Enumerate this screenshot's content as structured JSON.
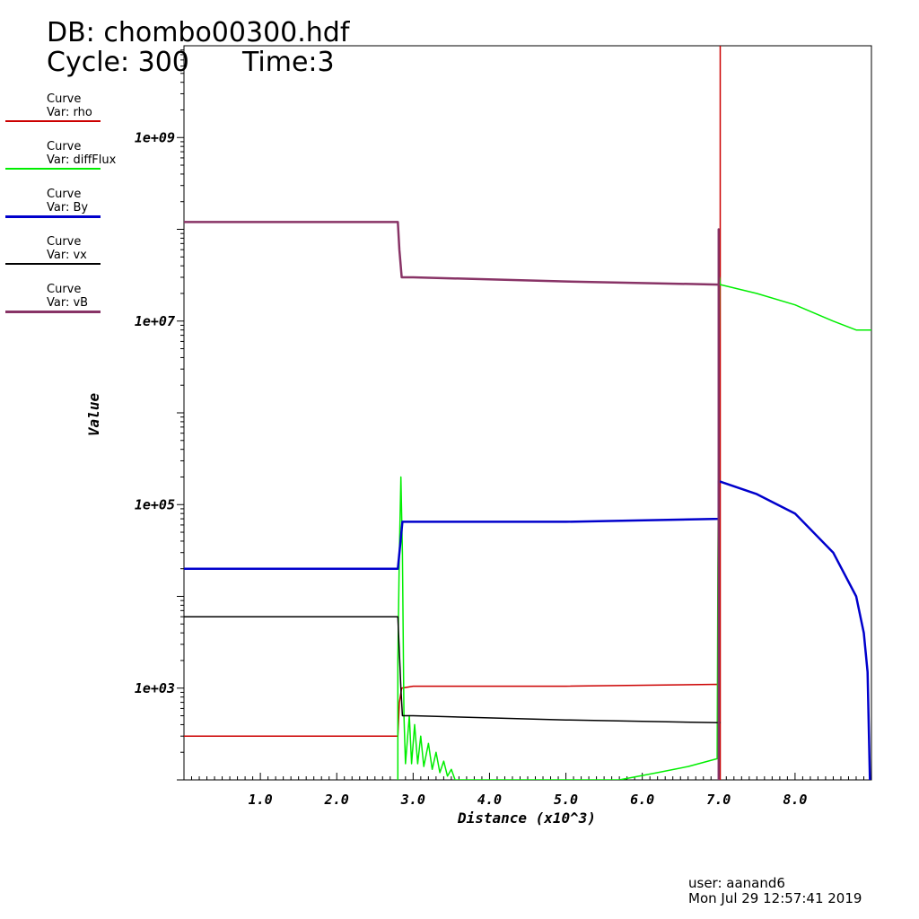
{
  "header": {
    "db": "DB: chombo00300.hdf",
    "cycle": "Cycle: 300",
    "time": "Time:3"
  },
  "footer": {
    "user": "user: aanand6",
    "date": "Mon Jul 29 12:57:41 2019"
  },
  "legend": [
    {
      "kind": "Curve",
      "var": "Var: rho",
      "color": "#cc0000"
    },
    {
      "kind": "Curve",
      "var": "Var: diffFlux",
      "color": "#00ee00"
    },
    {
      "kind": "Curve",
      "var": "Var: By",
      "color": "#0000cc"
    },
    {
      "kind": "Curve",
      "var": "Var: vx",
      "color": "#000000"
    },
    {
      "kind": "Curve",
      "var": "Var: vB",
      "color": "#883366"
    }
  ],
  "chart_data": {
    "type": "line",
    "xlabel": "Distance (x10^3)",
    "ylabel": "Value",
    "y_scale": "log",
    "xlim": [
      0,
      9.0
    ],
    "ylim": [
      100,
      10000000000
    ],
    "x_ticks": [
      "1.0",
      "2.0",
      "3.0",
      "4.0",
      "5.0",
      "6.0",
      "7.0",
      "8.0"
    ],
    "y_ticks": [
      {
        "label": "1e+03",
        "value": 1000
      },
      {
        "label": "1e+05",
        "value": 100000
      },
      {
        "label": "1e+07",
        "value": 10000000
      },
      {
        "label": "1e+09",
        "value": 1000000000
      }
    ],
    "series": [
      {
        "name": "rho",
        "color": "#cc0000",
        "width": 1.5,
        "points": [
          [
            0,
            300
          ],
          [
            2.8,
            300
          ],
          [
            2.82,
            700
          ],
          [
            2.85,
            1000
          ],
          [
            3.0,
            1050
          ],
          [
            5.0,
            1050
          ],
          [
            7.0,
            1100
          ],
          [
            7.02,
            100
          ],
          [
            7.02,
            10000000000
          ]
        ]
      },
      {
        "name": "diffFlux",
        "color": "#00ee00",
        "width": 1.5,
        "points": [
          [
            2.8,
            100
          ],
          [
            2.8,
            2000
          ],
          [
            2.82,
            30000
          ],
          [
            2.84,
            200000
          ],
          [
            2.86,
            30000
          ],
          [
            2.88,
            500
          ],
          [
            2.9,
            150
          ],
          [
            2.95,
            500
          ],
          [
            2.98,
            150
          ],
          [
            3.02,
            400
          ],
          [
            3.06,
            150
          ],
          [
            3.1,
            300
          ],
          [
            3.14,
            140
          ],
          [
            3.2,
            250
          ],
          [
            3.25,
            130
          ],
          [
            3.3,
            200
          ],
          [
            3.35,
            120
          ],
          [
            3.4,
            160
          ],
          [
            3.45,
            110
          ],
          [
            3.5,
            130
          ],
          [
            3.55,
            100
          ],
          [
            5.7,
            100
          ],
          [
            6.2,
            120
          ],
          [
            6.6,
            140
          ],
          [
            6.98,
            170
          ],
          [
            6.99,
            20000
          ],
          [
            7.0,
            500000
          ],
          [
            7.01,
            30000000
          ],
          [
            7.02,
            25000000
          ],
          [
            7.5,
            20000000
          ],
          [
            8.0,
            15000000
          ],
          [
            8.5,
            10000000
          ],
          [
            8.8,
            8000000
          ],
          [
            9.0,
            8000000
          ]
        ]
      },
      {
        "name": "By",
        "color": "#0000cc",
        "width": 2.5,
        "points": [
          [
            0,
            20000
          ],
          [
            2.8,
            20000
          ],
          [
            2.86,
            65000
          ],
          [
            5.0,
            65000
          ],
          [
            7.0,
            70000
          ],
          [
            7.0,
            180000
          ],
          [
            7.5,
            130000
          ],
          [
            8.0,
            80000
          ],
          [
            8.5,
            30000
          ],
          [
            8.8,
            10000
          ],
          [
            8.9,
            4000
          ],
          [
            8.95,
            1500
          ],
          [
            8.98,
            100
          ]
        ]
      },
      {
        "name": "vx",
        "color": "#000000",
        "width": 1.5,
        "points": [
          [
            0,
            6000
          ],
          [
            2.8,
            6000
          ],
          [
            2.84,
            1000
          ],
          [
            2.86,
            500
          ],
          [
            3.0,
            500
          ],
          [
            5.0,
            450
          ],
          [
            7.0,
            420
          ],
          [
            7.02,
            420
          ]
        ]
      },
      {
        "name": "vB",
        "color": "#883366",
        "width": 2.5,
        "points": [
          [
            0,
            120000000
          ],
          [
            2.8,
            120000000
          ],
          [
            2.82,
            60000000
          ],
          [
            2.85,
            30000000
          ],
          [
            3.0,
            30000000
          ],
          [
            5.0,
            27000000
          ],
          [
            7.0,
            25000000
          ],
          [
            7.0,
            100
          ],
          [
            7.0,
            100000000
          ],
          [
            7.0,
            25000000
          ]
        ]
      }
    ]
  }
}
